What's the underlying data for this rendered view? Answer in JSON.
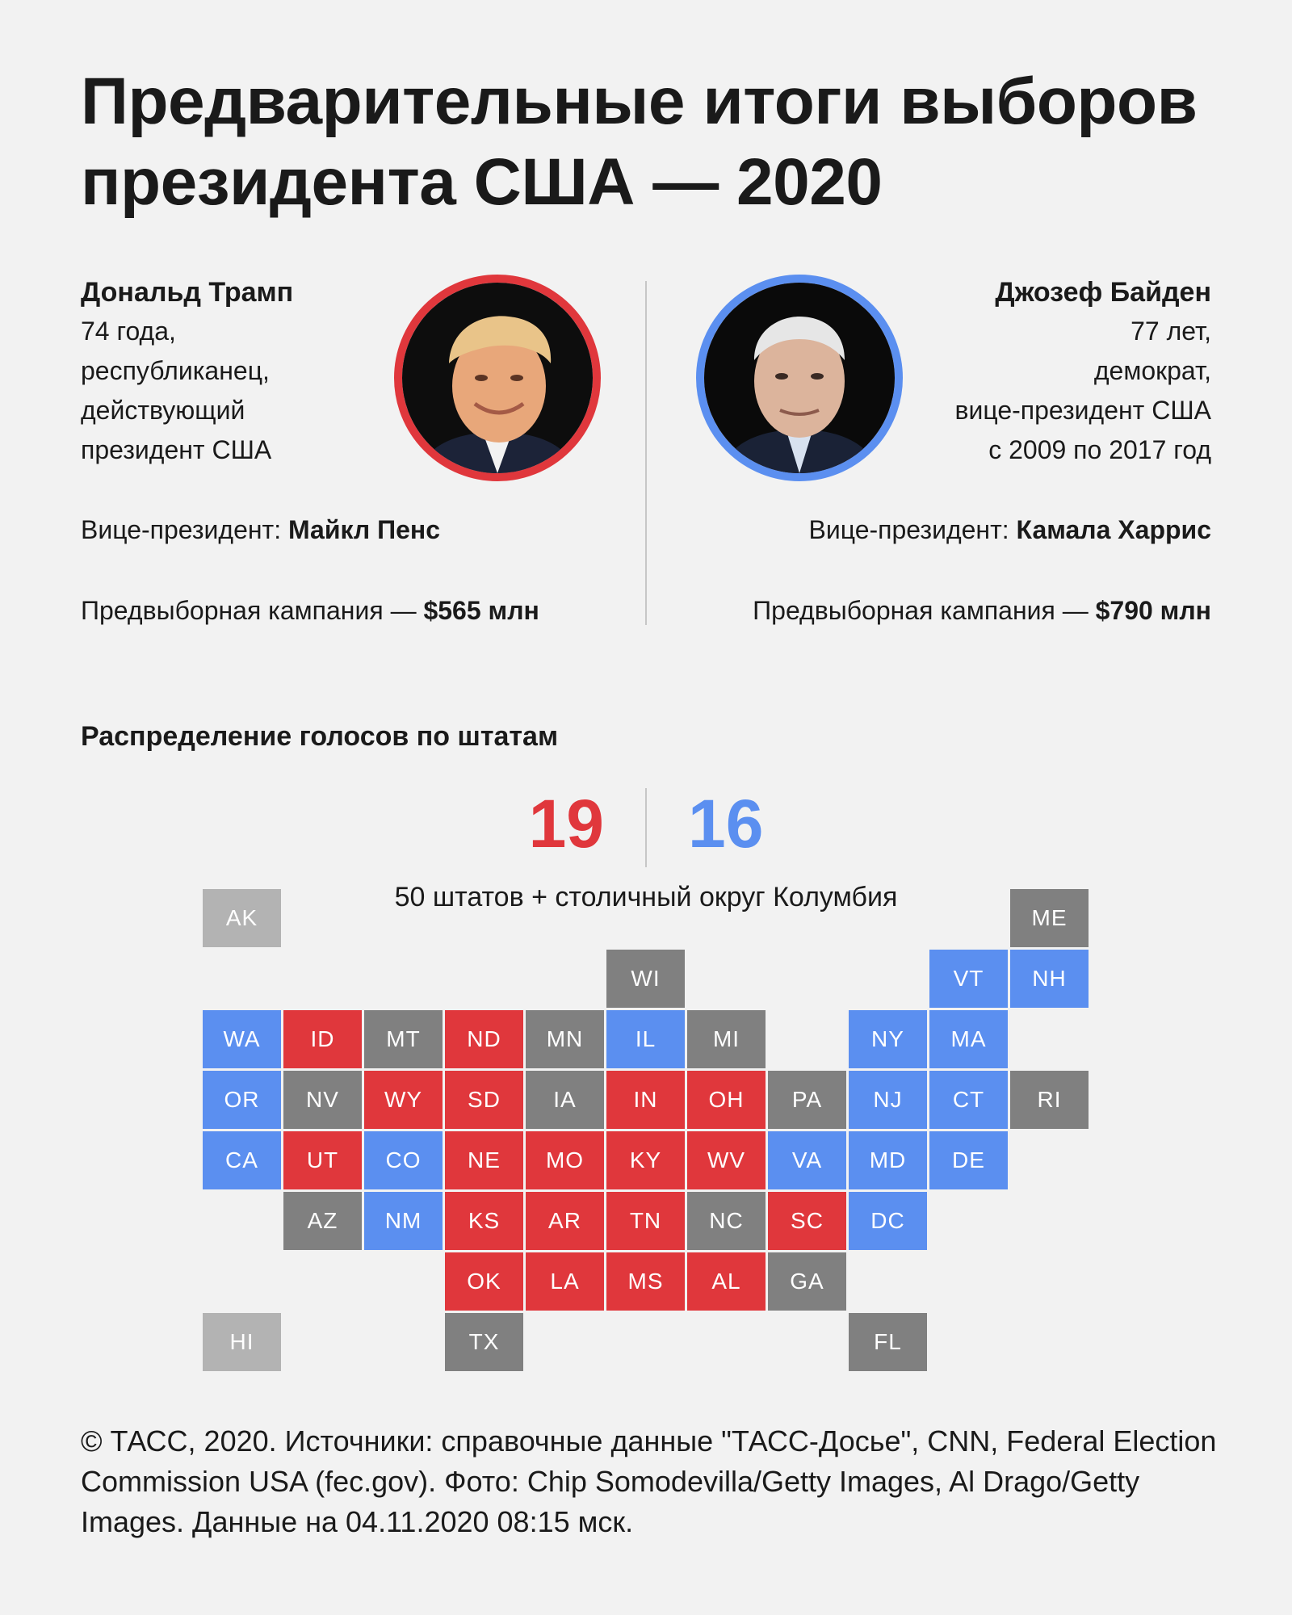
{
  "title": "Предварительные итоги выборов президента США — 2020",
  "left": {
    "name": "Дональд Трамп",
    "lines": [
      "74 года,",
      "республиканец,",
      "действующий",
      "президент США"
    ],
    "vp_label": "Вице-президент: ",
    "vp_name": "Майкл Пенс",
    "campaign_label": "Предвыборная кампания — ",
    "campaign_value": "$565 млн"
  },
  "right": {
    "name": "Джозеф Байден",
    "lines": [
      "77 лет,",
      "демократ,",
      "вице-президент США",
      "с 2009 по 2017 год"
    ],
    "vp_label": "Вице-президент: ",
    "vp_name": "Камала Харрис",
    "campaign_label": "Предвыборная кампания — ",
    "campaign_value": "$790 млн"
  },
  "section_title": "Распределение голосов по штатам",
  "score": {
    "republican": "19",
    "democrat": "16"
  },
  "subtitle": "50 штатов + столичный округ Колумбия",
  "colors": {
    "republican": "#e0373c",
    "democrat": "#5b8ff0",
    "undecided": "#808080",
    "noncontiguous": "#b3b3b3"
  },
  "states": [
    {
      "code": "AK",
      "row": 0,
      "col": 0,
      "status": "l"
    },
    {
      "code": "ME",
      "row": 0,
      "col": 10,
      "status": "u"
    },
    {
      "code": "WI",
      "row": 1,
      "col": 5,
      "status": "u"
    },
    {
      "code": "VT",
      "row": 1,
      "col": 9,
      "status": "d"
    },
    {
      "code": "NH",
      "row": 1,
      "col": 10,
      "status": "d"
    },
    {
      "code": "WA",
      "row": 2,
      "col": 0,
      "status": "d"
    },
    {
      "code": "ID",
      "row": 2,
      "col": 1,
      "status": "r"
    },
    {
      "code": "MT",
      "row": 2,
      "col": 2,
      "status": "u"
    },
    {
      "code": "ND",
      "row": 2,
      "col": 3,
      "status": "r"
    },
    {
      "code": "MN",
      "row": 2,
      "col": 4,
      "status": "u"
    },
    {
      "code": "IL",
      "row": 2,
      "col": 5,
      "status": "d"
    },
    {
      "code": "MI",
      "row": 2,
      "col": 6,
      "status": "u"
    },
    {
      "code": "NY",
      "row": 2,
      "col": 8,
      "status": "d"
    },
    {
      "code": "MA",
      "row": 2,
      "col": 9,
      "status": "d"
    },
    {
      "code": "OR",
      "row": 3,
      "col": 0,
      "status": "d"
    },
    {
      "code": "NV",
      "row": 3,
      "col": 1,
      "status": "u"
    },
    {
      "code": "WY",
      "row": 3,
      "col": 2,
      "status": "r"
    },
    {
      "code": "SD",
      "row": 3,
      "col": 3,
      "status": "r"
    },
    {
      "code": "IA",
      "row": 3,
      "col": 4,
      "status": "u"
    },
    {
      "code": "IN",
      "row": 3,
      "col": 5,
      "status": "r"
    },
    {
      "code": "OH",
      "row": 3,
      "col": 6,
      "status": "r"
    },
    {
      "code": "PA",
      "row": 3,
      "col": 7,
      "status": "u"
    },
    {
      "code": "NJ",
      "row": 3,
      "col": 8,
      "status": "d"
    },
    {
      "code": "CT",
      "row": 3,
      "col": 9,
      "status": "d"
    },
    {
      "code": "RI",
      "row": 3,
      "col": 10,
      "status": "u"
    },
    {
      "code": "CA",
      "row": 4,
      "col": 0,
      "status": "d"
    },
    {
      "code": "UT",
      "row": 4,
      "col": 1,
      "status": "r"
    },
    {
      "code": "CO",
      "row": 4,
      "col": 2,
      "status": "d"
    },
    {
      "code": "NE",
      "row": 4,
      "col": 3,
      "status": "r"
    },
    {
      "code": "MO",
      "row": 4,
      "col": 4,
      "status": "r"
    },
    {
      "code": "KY",
      "row": 4,
      "col": 5,
      "status": "r"
    },
    {
      "code": "WV",
      "row": 4,
      "col": 6,
      "status": "r"
    },
    {
      "code": "VA",
      "row": 4,
      "col": 7,
      "status": "d"
    },
    {
      "code": "MD",
      "row": 4,
      "col": 8,
      "status": "d"
    },
    {
      "code": "DE",
      "row": 4,
      "col": 9,
      "status": "d"
    },
    {
      "code": "AZ",
      "row": 5,
      "col": 1,
      "status": "u"
    },
    {
      "code": "NM",
      "row": 5,
      "col": 2,
      "status": "d"
    },
    {
      "code": "KS",
      "row": 5,
      "col": 3,
      "status": "r"
    },
    {
      "code": "AR",
      "row": 5,
      "col": 4,
      "status": "r"
    },
    {
      "code": "TN",
      "row": 5,
      "col": 5,
      "status": "r"
    },
    {
      "code": "NC",
      "row": 5,
      "col": 6,
      "status": "u"
    },
    {
      "code": "SC",
      "row": 5,
      "col": 7,
      "status": "r"
    },
    {
      "code": "DC",
      "row": 5,
      "col": 8,
      "status": "d"
    },
    {
      "code": "OK",
      "row": 6,
      "col": 3,
      "status": "r"
    },
    {
      "code": "LA",
      "row": 6,
      "col": 4,
      "status": "r"
    },
    {
      "code": "MS",
      "row": 6,
      "col": 5,
      "status": "r"
    },
    {
      "code": "AL",
      "row": 6,
      "col": 6,
      "status": "r"
    },
    {
      "code": "GA",
      "row": 6,
      "col": 7,
      "status": "u"
    },
    {
      "code": "HI",
      "row": 7,
      "col": 0,
      "status": "l"
    },
    {
      "code": "TX",
      "row": 7,
      "col": 3,
      "status": "u"
    },
    {
      "code": "FL",
      "row": 7,
      "col": 8,
      "status": "u"
    }
  ],
  "footer": "© ТАСС, 2020. Источники: справочные данные \"ТАСС-Досье\", CNN, Federal Election Commission USA (fec.gov). Фото: Chip Somodevilla/Getty Images, Al Drago/Getty Images. Данные на 04.11.2020 08:15 мск."
}
